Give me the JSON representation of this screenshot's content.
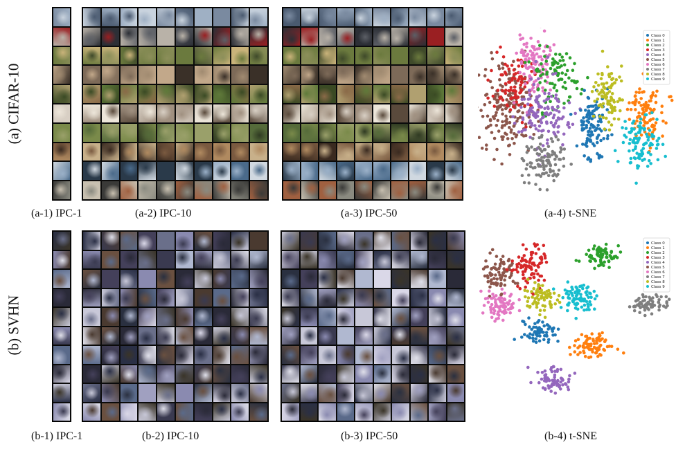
{
  "rows": [
    {
      "row_label": "(a) CIFAR-10",
      "captions": [
        "(a-1) IPC-1",
        "(a-2) IPC-10",
        "(a-3) IPC-50",
        "(a-4) t-SNE"
      ],
      "dataset": "cifar",
      "legend": [
        "Class 0",
        "Class 1",
        "Class 2",
        "Class 3",
        "Class 4",
        "Class 5",
        "Class 6",
        "Class 7",
        "Class 8",
        "Class 9"
      ]
    },
    {
      "row_label": "(b) SVHN",
      "captions": [
        "(b-1) IPC-1",
        "(b-2) IPC-10",
        "(b-3) IPC-50",
        "(b-4) t-SNE"
      ],
      "dataset": "svhn",
      "legend": [
        "Class 0",
        "Class 1",
        "Class 2",
        "Class 3",
        "Class 4",
        "Class 5",
        "Class 6",
        "Class 7",
        "Class 8",
        "Class 9"
      ]
    }
  ],
  "class_colors": [
    "#1f77b4",
    "#ff7f0e",
    "#2ca02c",
    "#d62728",
    "#9467bd",
    "#8c564b",
    "#e377c2",
    "#7f7f7f",
    "#bcbd22",
    "#17becf"
  ]
}
